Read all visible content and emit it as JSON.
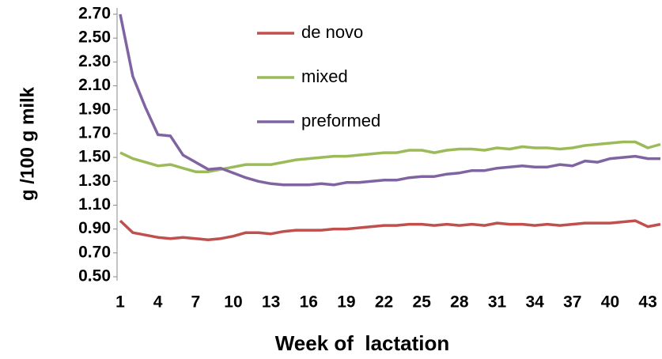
{
  "chart_data": {
    "type": "line",
    "x_label": "Week of  lactation",
    "y_label": "g /100 g milk",
    "x": [
      1,
      2,
      3,
      4,
      5,
      6,
      7,
      8,
      9,
      10,
      11,
      12,
      13,
      14,
      15,
      16,
      17,
      18,
      19,
      20,
      21,
      22,
      23,
      24,
      25,
      26,
      27,
      28,
      29,
      30,
      31,
      32,
      33,
      34,
      35,
      36,
      37,
      38,
      39,
      40,
      41,
      42,
      43,
      44
    ],
    "series": [
      {
        "name": "de novo",
        "color": "#c0504d",
        "values": [
          0.97,
          0.87,
          0.85,
          0.83,
          0.82,
          0.83,
          0.82,
          0.81,
          0.82,
          0.84,
          0.87,
          0.87,
          0.86,
          0.88,
          0.89,
          0.89,
          0.89,
          0.9,
          0.9,
          0.91,
          0.92,
          0.93,
          0.93,
          0.94,
          0.94,
          0.93,
          0.94,
          0.93,
          0.94,
          0.93,
          0.95,
          0.94,
          0.94,
          0.93,
          0.94,
          0.93,
          0.94,
          0.95,
          0.95,
          0.95,
          0.96,
          0.97,
          0.92,
          0.94
        ]
      },
      {
        "name": "mixed",
        "color": "#9bbb59",
        "values": [
          1.54,
          1.49,
          1.46,
          1.43,
          1.44,
          1.41,
          1.38,
          1.38,
          1.4,
          1.42,
          1.44,
          1.44,
          1.44,
          1.46,
          1.48,
          1.49,
          1.5,
          1.51,
          1.51,
          1.52,
          1.53,
          1.54,
          1.54,
          1.56,
          1.56,
          1.54,
          1.56,
          1.57,
          1.57,
          1.56,
          1.58,
          1.57,
          1.59,
          1.58,
          1.58,
          1.57,
          1.58,
          1.6,
          1.61,
          1.62,
          1.63,
          1.63,
          1.58,
          1.61
        ]
      },
      {
        "name": "preformed",
        "color": "#8064a2",
        "values": [
          2.7,
          2.18,
          1.92,
          1.69,
          1.68,
          1.52,
          1.46,
          1.4,
          1.41,
          1.37,
          1.33,
          1.3,
          1.28,
          1.27,
          1.27,
          1.27,
          1.28,
          1.27,
          1.29,
          1.29,
          1.3,
          1.31,
          1.31,
          1.33,
          1.34,
          1.34,
          1.36,
          1.37,
          1.39,
          1.39,
          1.41,
          1.42,
          1.43,
          1.42,
          1.42,
          1.44,
          1.43,
          1.47,
          1.46,
          1.49,
          1.5,
          1.51,
          1.49,
          1.49
        ]
      }
    ],
    "xlim": [
      1,
      44
    ],
    "xticks": [
      1,
      4,
      7,
      10,
      13,
      16,
      19,
      22,
      25,
      28,
      31,
      34,
      37,
      40,
      43
    ],
    "ylim": [
      0.5,
      2.7
    ],
    "yticks": [
      {
        "value": 0.5,
        "label": "0.50"
      },
      {
        "value": 0.7,
        "label": "0.70"
      },
      {
        "value": 0.9,
        "label": "0.90"
      },
      {
        "value": 1.1,
        "label": "1.10"
      },
      {
        "value": 1.3,
        "label": "1.30"
      },
      {
        "value": 1.5,
        "label": "1.50"
      },
      {
        "value": 1.7,
        "label": "1.70"
      },
      {
        "value": 1.9,
        "label": "1.90"
      },
      {
        "value": 2.1,
        "label": "2.10"
      },
      {
        "value": 2.3,
        "label": "2.30"
      },
      {
        "value": 2.5,
        "label": "2.50"
      },
      {
        "value": 2.7,
        "label": "2.70"
      }
    ],
    "grid": false
  }
}
